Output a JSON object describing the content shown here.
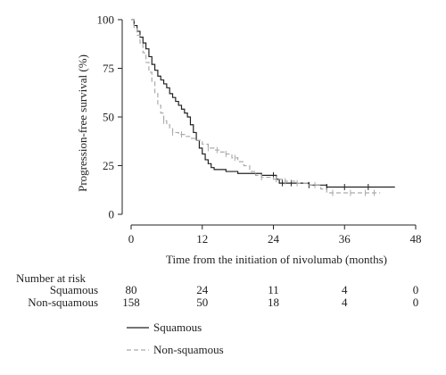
{
  "chart_data": {
    "type": "line",
    "step": true,
    "xlabel": "Time from the initiation of nivolumab (months)",
    "ylabel": "Progression-free survival (%)",
    "xlim": [
      0,
      48
    ],
    "ylim": [
      0,
      100
    ],
    "xticks": [
      "0",
      "12",
      "24",
      "36",
      "48"
    ],
    "yticks": [
      "0",
      "25",
      "50",
      "75",
      "100"
    ],
    "grid": false,
    "legend_position": "bottom-left",
    "series": [
      {
        "name": "Squamous",
        "style": "solid",
        "color": "#222222",
        "points": [
          [
            0,
            100
          ],
          [
            0.5,
            97
          ],
          [
            1,
            94
          ],
          [
            1.5,
            91
          ],
          [
            2,
            88
          ],
          [
            2.5,
            85
          ],
          [
            3,
            81
          ],
          [
            3.5,
            77
          ],
          [
            4,
            74
          ],
          [
            4.5,
            71
          ],
          [
            5,
            69
          ],
          [
            5.5,
            67
          ],
          [
            6,
            65
          ],
          [
            6.5,
            62
          ],
          [
            7,
            60
          ],
          [
            7.5,
            58
          ],
          [
            8,
            56
          ],
          [
            8.5,
            54
          ],
          [
            9,
            52
          ],
          [
            9.5,
            50
          ],
          [
            10,
            46
          ],
          [
            10.5,
            42
          ],
          [
            11,
            38
          ],
          [
            11.5,
            34
          ],
          [
            12,
            31
          ],
          [
            12.5,
            28
          ],
          [
            13,
            26
          ],
          [
            13.5,
            24
          ],
          [
            14,
            23
          ],
          [
            16,
            22
          ],
          [
            18,
            21
          ],
          [
            20,
            21
          ],
          [
            22,
            20
          ],
          [
            24,
            20
          ],
          [
            24.5,
            18
          ],
          [
            25,
            16
          ],
          [
            27,
            16
          ],
          [
            30,
            15
          ],
          [
            33,
            14
          ],
          [
            36,
            14
          ],
          [
            39,
            14
          ],
          [
            42,
            14
          ],
          [
            44.5,
            14
          ]
        ],
        "censor_x": [
          24,
          25.5,
          27,
          30,
          33,
          36,
          40
        ]
      },
      {
        "name": "Non-squamous",
        "style": "dashed",
        "color": "#aaaaaa",
        "points": [
          [
            0,
            100
          ],
          [
            0.5,
            96
          ],
          [
            1,
            92
          ],
          [
            1.5,
            88
          ],
          [
            2,
            83
          ],
          [
            2.5,
            78
          ],
          [
            3,
            73
          ],
          [
            3.5,
            68
          ],
          [
            4,
            62
          ],
          [
            4.5,
            56
          ],
          [
            5,
            52
          ],
          [
            5.5,
            48
          ],
          [
            6,
            46
          ],
          [
            6.5,
            44
          ],
          [
            7,
            42
          ],
          [
            8,
            41
          ],
          [
            9,
            40
          ],
          [
            10,
            39
          ],
          [
            11,
            38
          ],
          [
            12,
            36
          ],
          [
            13,
            34
          ],
          [
            14,
            33
          ],
          [
            15,
            32
          ],
          [
            16,
            31
          ],
          [
            17,
            29
          ],
          [
            18,
            27
          ],
          [
            19,
            25
          ],
          [
            20,
            22
          ],
          [
            21,
            20
          ],
          [
            22,
            19
          ],
          [
            24,
            18
          ],
          [
            26,
            17
          ],
          [
            28,
            16
          ],
          [
            30,
            15
          ],
          [
            32,
            13
          ],
          [
            33,
            11
          ],
          [
            36,
            11
          ],
          [
            39,
            11
          ],
          [
            42,
            11
          ]
        ],
        "censor_x": [
          5.5,
          7,
          8.5,
          13,
          14.5,
          16,
          17.5,
          22,
          24.5,
          26,
          28,
          31,
          34,
          37,
          39.5,
          41
        ]
      }
    ],
    "risk_table": {
      "title": "Number at risk",
      "times": [
        0,
        12,
        24,
        36,
        48
      ],
      "rows": [
        {
          "label": "Squamous",
          "counts": [
            "80",
            "24",
            "11",
            "4",
            "0"
          ]
        },
        {
          "label": "Non-squamous",
          "counts": [
            "158",
            "50",
            "18",
            "4",
            "0"
          ]
        }
      ]
    }
  }
}
